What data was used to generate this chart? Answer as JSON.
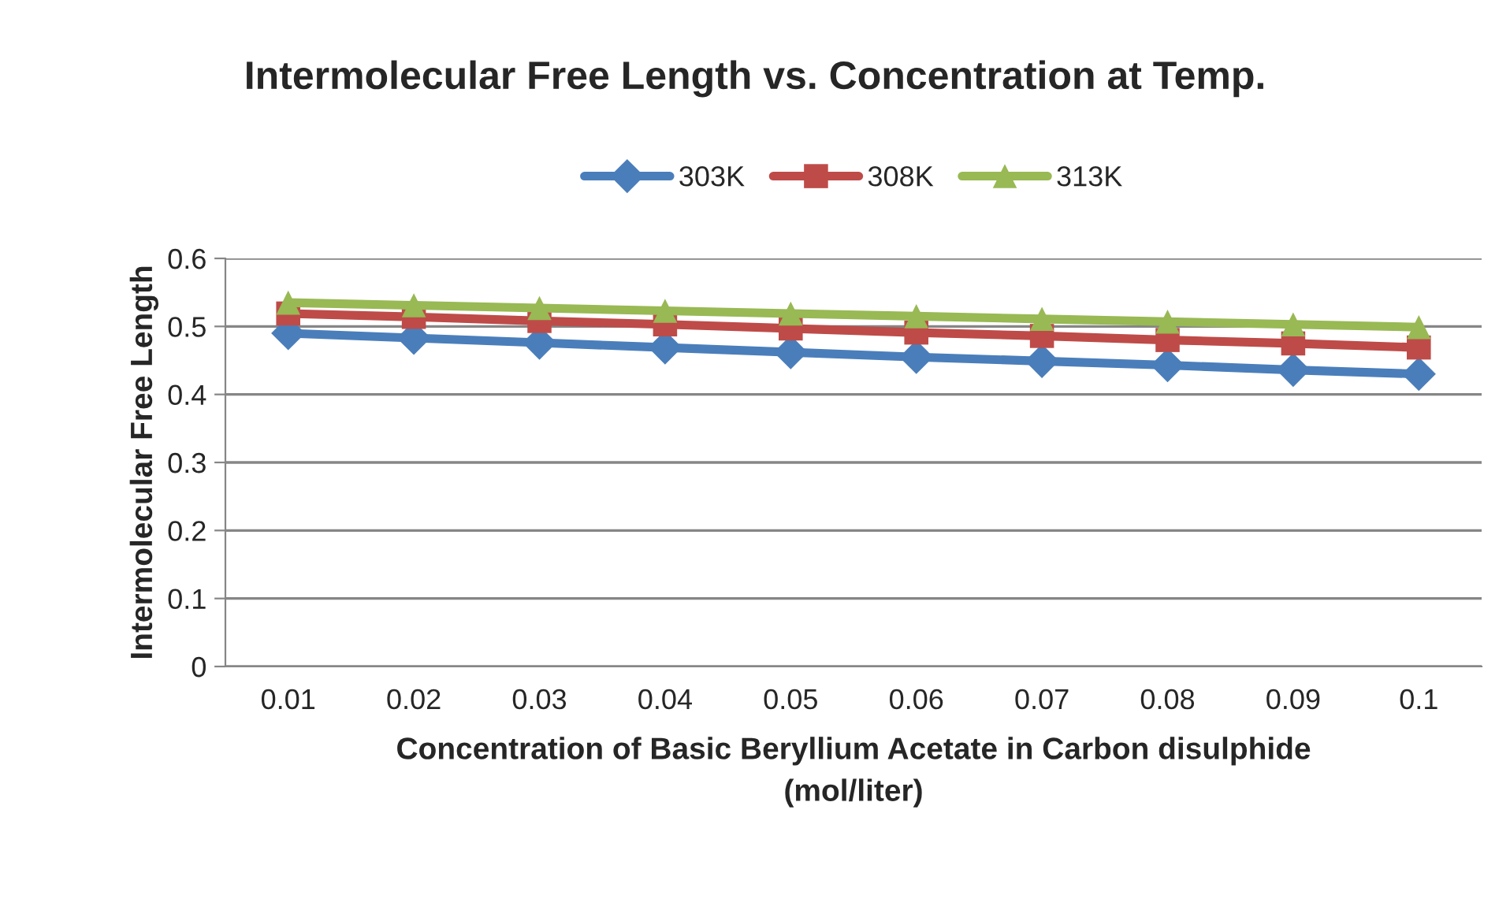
{
  "chart_data": {
    "type": "line",
    "title": "Intermolecular Free Length vs. Concentration at Temp.",
    "xlabel": "Concentration of Basic Beryllium Acetate in Carbon disulphide\n(mol/liter)",
    "ylabel": "Intermolecular Free Length",
    "categories": [
      "0.01",
      "0.02",
      "0.03",
      "0.04",
      "0.05",
      "0.06",
      "0.07",
      "0.08",
      "0.09",
      "0.1"
    ],
    "series": [
      {
        "name": "303K",
        "color": "#4a7ebb",
        "marker": "diamond",
        "values": [
          0.49,
          0.483,
          0.476,
          0.469,
          0.462,
          0.455,
          0.449,
          0.443,
          0.436,
          0.43
        ]
      },
      {
        "name": "308K",
        "color": "#be4b48",
        "marker": "square",
        "values": [
          0.519,
          0.514,
          0.508,
          0.503,
          0.497,
          0.491,
          0.486,
          0.48,
          0.475,
          0.469
        ]
      },
      {
        "name": "313K",
        "color": "#98b954",
        "marker": "triangle",
        "values": [
          0.535,
          0.531,
          0.527,
          0.523,
          0.519,
          0.515,
          0.511,
          0.507,
          0.503,
          0.499
        ]
      }
    ],
    "ylim": [
      0,
      0.6
    ],
    "yticks": [
      0,
      0.1,
      0.2,
      0.3,
      0.4,
      0.5,
      0.6
    ],
    "grid": "y",
    "legend": "top",
    "line_style": "solid"
  }
}
